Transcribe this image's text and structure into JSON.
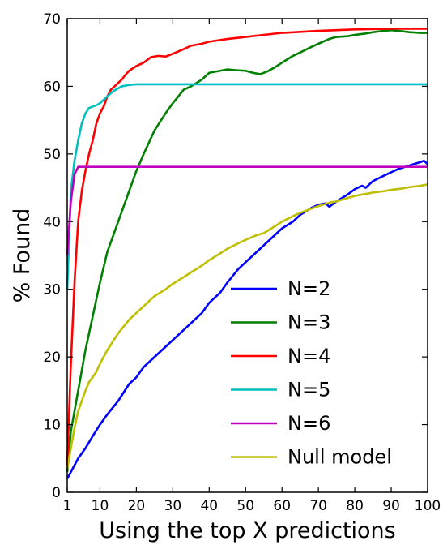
{
  "chart_data": {
    "type": "line",
    "xlabel": "Using the top X predictions",
    "ylabel": "% Found",
    "xlim": [
      1,
      100
    ],
    "ylim": [
      0,
      70
    ],
    "xticks": [
      1,
      10,
      20,
      30,
      40,
      50,
      60,
      70,
      80,
      90,
      100
    ],
    "yticks": [
      0,
      10,
      20,
      30,
      40,
      50,
      60,
      70
    ],
    "grid": false,
    "legend_position": "lower-right",
    "series": [
      {
        "name": "N=2",
        "color": "#0000ff",
        "x": [
          1,
          2,
          4,
          6,
          8,
          10,
          12,
          15,
          18,
          20,
          22,
          25,
          28,
          30,
          33,
          35,
          38,
          40,
          43,
          45,
          48,
          50,
          52,
          55,
          58,
          60,
          63,
          65,
          68,
          70,
          72,
          73,
          75,
          78,
          80,
          82,
          83,
          85,
          88,
          90,
          92,
          95,
          98,
          99,
          100
        ],
        "y": [
          2,
          3,
          5,
          6.5,
          8.3,
          10,
          11.5,
          13.5,
          16,
          17,
          18.5,
          20,
          21.5,
          22.5,
          24,
          25,
          26.5,
          28,
          29.5,
          31,
          33,
          34,
          35,
          36.5,
          38,
          39,
          40,
          41,
          42,
          42.5,
          42.7,
          42.2,
          43,
          44,
          44.8,
          45.3,
          45,
          46,
          46.8,
          47.3,
          47.8,
          48.3,
          48.8,
          49,
          48.5
        ]
      },
      {
        "name": "N=3",
        "color": "#008000",
        "x": [
          1,
          2,
          4,
          6,
          8,
          10,
          12,
          15,
          18,
          20,
          22,
          25,
          28,
          30,
          33,
          35,
          38,
          40,
          43,
          45,
          47,
          50,
          52,
          54,
          56,
          58,
          60,
          63,
          65,
          68,
          70,
          73,
          75,
          78,
          80,
          83,
          85,
          88,
          90,
          92,
          95,
          98,
          100
        ],
        "y": [
          3,
          9,
          15,
          21,
          26,
          31,
          35.5,
          40,
          44.5,
          47.5,
          50,
          53.5,
          56,
          57.5,
          59.5,
          60,
          61,
          62,
          62.3,
          62.5,
          62.4,
          62.3,
          62,
          61.8,
          62.2,
          62.8,
          63.5,
          64.5,
          65,
          65.8,
          66.3,
          67,
          67.3,
          67.4,
          67.6,
          67.8,
          68,
          68.2,
          68.3,
          68.2,
          68,
          67.9,
          67.9
        ]
      },
      {
        "name": "N=4",
        "color": "#ff0000",
        "x": [
          1,
          2,
          3,
          4,
          5,
          6,
          7,
          8,
          9,
          10,
          11,
          12,
          13,
          14,
          15,
          16,
          17,
          18,
          20,
          22,
          24,
          26,
          28,
          30,
          33,
          35,
          38,
          40,
          45,
          50,
          55,
          60,
          70,
          80,
          90,
          100
        ],
        "y": [
          4,
          19,
          31,
          40,
          44.5,
          47.5,
          50,
          52,
          54.5,
          56,
          57,
          58.5,
          59.5,
          60,
          60.5,
          61,
          61.7,
          62.3,
          63,
          63.5,
          64.3,
          64.5,
          64.4,
          64.8,
          65.5,
          66,
          66.3,
          66.6,
          67,
          67.3,
          67.6,
          67.9,
          68.2,
          68.4,
          68.5,
          68.5
        ]
      },
      {
        "name": "N=5",
        "color": "#00bfbf",
        "x": [
          1,
          2,
          3,
          4,
          5,
          6,
          7,
          8,
          9,
          10,
          11,
          12,
          13,
          14,
          15,
          16,
          18,
          20,
          25,
          30,
          40,
          50,
          60,
          70,
          80,
          90,
          100
        ],
        "y": [
          30,
          44.5,
          49,
          52,
          54.5,
          56,
          56.8,
          57,
          57.2,
          57.5,
          58,
          58.5,
          59,
          59.4,
          59.7,
          60,
          60.2,
          60.3,
          60.3,
          60.3,
          60.3,
          60.3,
          60.3,
          60.3,
          60.3,
          60.3,
          60.3
        ]
      },
      {
        "name": "N=6",
        "color": "#bf00bf",
        "x": [
          1,
          2,
          3,
          4,
          5,
          100
        ],
        "y": [
          35,
          43,
          47,
          48.1,
          48.1,
          48.1
        ]
      },
      {
        "name": "Null model",
        "color": "#bfbf00",
        "x": [
          1,
          2,
          3,
          4,
          5,
          6,
          7,
          8,
          9,
          10,
          12,
          15,
          18,
          20,
          22,
          25,
          28,
          30,
          33,
          35,
          38,
          40,
          43,
          45,
          48,
          50,
          53,
          55,
          58,
          60,
          63,
          65,
          68,
          70,
          73,
          75,
          78,
          80,
          83,
          85,
          88,
          90,
          93,
          95,
          98,
          100
        ],
        "y": [
          3.5,
          6.5,
          9.5,
          12,
          13.5,
          15,
          16.3,
          17,
          17.8,
          19,
          21,
          23.5,
          25.5,
          26.5,
          27.5,
          29,
          30,
          30.8,
          31.8,
          32.5,
          33.5,
          34.3,
          35.3,
          36,
          36.8,
          37.3,
          38,
          38.3,
          39.3,
          40,
          40.8,
          41.3,
          41.9,
          42.3,
          42.8,
          43,
          43.5,
          43.8,
          44.1,
          44.3,
          44.5,
          44.7,
          44.9,
          45.1,
          45.3,
          45.5
        ]
      }
    ]
  }
}
